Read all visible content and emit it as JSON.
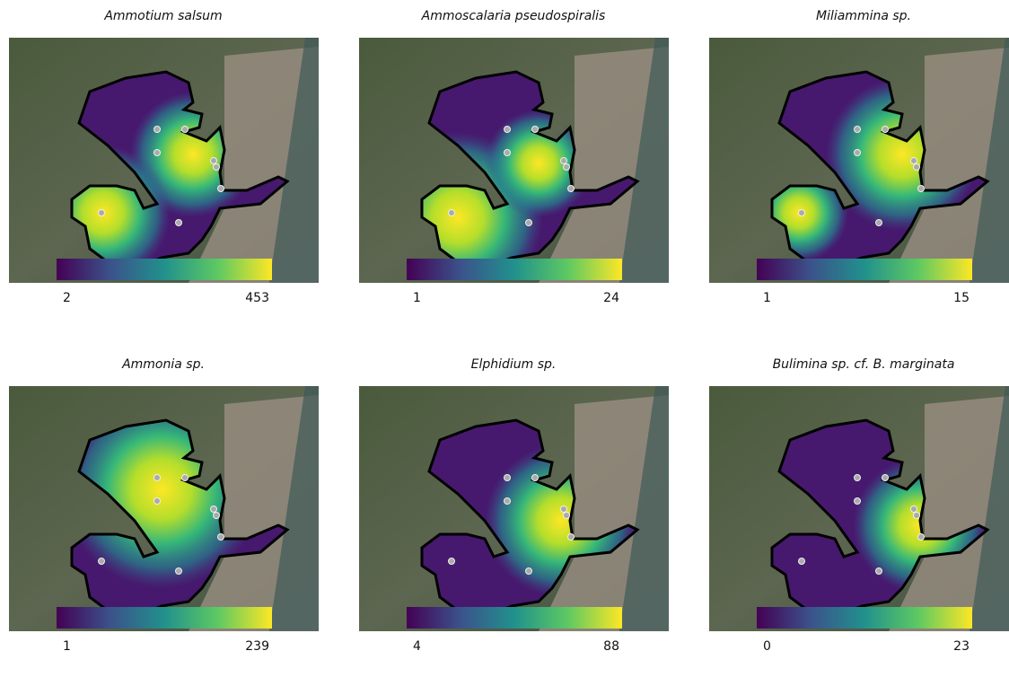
{
  "panels": [
    {
      "title": "Ammotium salsum",
      "min": 2,
      "max": 453
    },
    {
      "title": "Ammoscalaria pseudospiralis",
      "min": 1,
      "max": 24
    },
    {
      "title": "Miliammina sp.",
      "min": 1,
      "max": 15
    },
    {
      "title": "Ammonia sp.",
      "min": 1,
      "max": 239
    },
    {
      "title": "Elphidium sp.",
      "min": 4,
      "max": 88
    },
    {
      "title": "Bulimina sp. cf. B. marginata",
      "min": 0,
      "max": 23
    }
  ]
}
